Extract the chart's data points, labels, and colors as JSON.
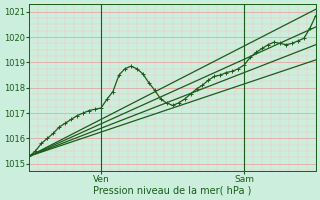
{
  "xlabel": "Pression niveau de la mer( hPa )",
  "bg_color": "#cceedd",
  "grid_color_major": "#ee9999",
  "grid_color_minor": "#ffbbbb",
  "line_color": "#1a5c1a",
  "ylim": [
    1014.7,
    1021.3
  ],
  "xlim": [
    0,
    96
  ],
  "yticks": [
    1015,
    1016,
    1017,
    1018,
    1019,
    1020,
    1021
  ],
  "xtick_positions": [
    24,
    72
  ],
  "xtick_labels": [
    "Ven",
    "Sam"
  ],
  "vline_positions": [
    24,
    72
  ],
  "marker": "+",
  "markersize": 3,
  "linewidth": 0.9,
  "series_main": [
    0,
    1015.3,
    2,
    1015.5,
    4,
    1015.8,
    6,
    1016.0,
    8,
    1016.2,
    10,
    1016.45,
    12,
    1016.6,
    14,
    1016.75,
    16,
    1016.9,
    18,
    1017.0,
    20,
    1017.1,
    22,
    1017.15,
    24,
    1017.2,
    26,
    1017.55,
    28,
    1017.85,
    30,
    1018.5,
    32,
    1018.75,
    34,
    1018.85,
    36,
    1018.75,
    38,
    1018.55,
    40,
    1018.2,
    42,
    1017.9,
    44,
    1017.55,
    46,
    1017.4,
    48,
    1017.3,
    50,
    1017.4,
    52,
    1017.55,
    54,
    1017.75,
    56,
    1017.95,
    58,
    1018.1,
    60,
    1018.3,
    62,
    1018.45,
    64,
    1018.5,
    66,
    1018.6,
    68,
    1018.65,
    70,
    1018.75,
    72,
    1018.9,
    74,
    1019.2,
    76,
    1019.4,
    78,
    1019.55,
    80,
    1019.7,
    82,
    1019.8,
    84,
    1019.75,
    86,
    1019.7,
    88,
    1019.75,
    90,
    1019.85,
    92,
    1019.95,
    94,
    1020.35,
    96,
    1020.85
  ],
  "series_straight": [
    [
      0,
      1015.3,
      96,
      1021.1
    ],
    [
      0,
      1015.3,
      96,
      1020.4
    ],
    [
      0,
      1015.3,
      96,
      1019.7
    ],
    [
      0,
      1015.3,
      96,
      1019.1
    ]
  ]
}
